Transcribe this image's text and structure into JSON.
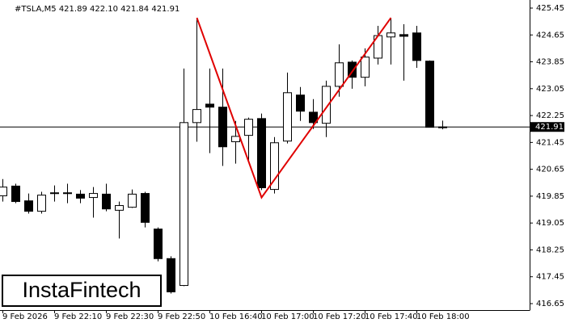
{
  "chart_data": {
    "type": "candlestick",
    "title": "#TSLA,M5  421.89 422.10 421.84 421.91",
    "watermark": "InstaFintech",
    "categories": [
      "9 Feb 2026",
      null,
      null,
      null,
      "9 Feb 22:10",
      null,
      null,
      null,
      "9 Feb 22:30",
      null,
      null,
      null,
      "9 Feb 22:50",
      null,
      null,
      null,
      "10 Feb 16:40",
      null,
      null,
      null,
      "10 Feb 17:00",
      null,
      null,
      null,
      "10 Feb 17:20",
      null,
      null,
      null,
      "10 Feb 17:40",
      null,
      null,
      null,
      "10 Feb 18:00",
      null,
      null
    ],
    "open": [
      419.86,
      420.15,
      419.71,
      419.4,
      419.93,
      419.95,
      419.91,
      419.81,
      419.91,
      419.43,
      419.52,
      419.93,
      418.87,
      417.99,
      417.19,
      422.04,
      422.59,
      422.5,
      421.47,
      421.66,
      422.16,
      420.05,
      421.49,
      422.86,
      422.35,
      422.02,
      423.12,
      423.84,
      423.39,
      423.96,
      424.59,
      424.66,
      424.71,
      423.87,
      421.89
    ],
    "high": [
      420.36,
      420.22,
      419.93,
      419.98,
      420.17,
      420.22,
      420.03,
      420.12,
      420.22,
      419.69,
      420.05,
      419.98,
      418.92,
      418.06,
      423.65,
      425.16,
      423.65,
      423.65,
      422.09,
      422.19,
      422.31,
      421.61,
      423.53,
      423.1,
      422.74,
      423.29,
      424.37,
      423.89,
      424.25,
      424.92,
      425.16,
      424.97,
      424.92,
      423.89,
      422.1
    ],
    "low": [
      419.69,
      419.64,
      419.33,
      419.33,
      419.69,
      419.64,
      419.64,
      419.21,
      419.4,
      418.59,
      419.5,
      418.92,
      417.91,
      416.95,
      417.17,
      421.47,
      421.13,
      420.75,
      420.82,
      420.89,
      420.03,
      419.93,
      421.42,
      422.09,
      421.85,
      421.61,
      422.81,
      423.05,
      423.12,
      423.77,
      423.77,
      423.29,
      423.67,
      421.9,
      421.84
    ],
    "close": [
      420.12,
      419.69,
      419.4,
      419.88,
      419.95,
      419.93,
      419.79,
      419.93,
      419.47,
      419.57,
      419.91,
      419.07,
      417.99,
      417.0,
      422.04,
      422.43,
      422.5,
      421.32,
      421.63,
      422.14,
      420.1,
      421.44,
      422.93,
      422.38,
      422.04,
      423.12,
      423.82,
      423.39,
      423.99,
      424.63,
      424.71,
      424.61,
      423.89,
      421.9,
      421.91
    ],
    "up_color": "#ffffff",
    "down_color": "#000000",
    "current_price": 421.91,
    "pattern": {
      "color": "#e00000",
      "x": [
        15,
        20,
        30
      ],
      "values": [
        425.16,
        419.81,
        425.16
      ]
    },
    "ylim": [
      416.65,
      425.45
    ],
    "yticks": [
      425.45,
      424.65,
      423.85,
      423.05,
      422.25,
      421.45,
      420.65,
      419.85,
      419.05,
      418.25,
      417.45,
      416.65
    ]
  }
}
